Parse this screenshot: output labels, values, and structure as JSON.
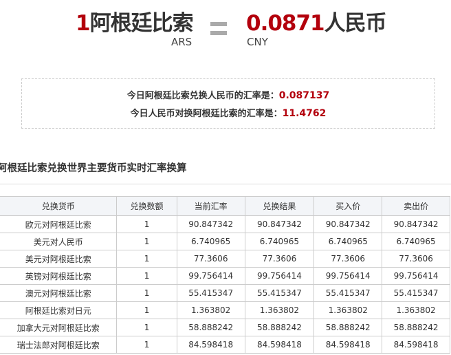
{
  "header": {
    "amount": "1",
    "from_name": "阿根廷比索",
    "from_code": "ARS",
    "result": "0.0871",
    "to_name": "人民币",
    "to_code": "CNY"
  },
  "rates": {
    "line1_label": "今日阿根廷比索兑换人民币的汇率是：",
    "line1_value": "0.087137",
    "line2_label": "今日人民币对换阿根廷比索的汇率是：",
    "line2_value": "11.4762"
  },
  "section_title": "阿根廷比索兑换世界主要货币实时汇率换算",
  "table": {
    "columns": [
      "兑换货币",
      "兑换数额",
      "当前汇率",
      "兑换结果",
      "买入价",
      "卖出价"
    ],
    "rows": [
      [
        "欧元对阿根廷比索",
        "1",
        "90.847342",
        "90.847342",
        "90.847342",
        "90.847342"
      ],
      [
        "美元对人民币",
        "1",
        "6.740965",
        "6.740965",
        "6.740965",
        "6.740965"
      ],
      [
        "美元对阿根廷比索",
        "1",
        "77.3606",
        "77.3606",
        "77.3606",
        "77.3606"
      ],
      [
        "英镑对阿根廷比索",
        "1",
        "99.756414",
        "99.756414",
        "99.756414",
        "99.756414"
      ],
      [
        "澳元对阿根廷比索",
        "1",
        "55.415347",
        "55.415347",
        "55.415347",
        "55.415347"
      ],
      [
        "阿根廷比索对日元",
        "1",
        "1.363802",
        "1.363802",
        "1.363802",
        "1.363802"
      ],
      [
        "加拿大元对阿根廷比索",
        "1",
        "58.888242",
        "58.888242",
        "58.888242",
        "58.888242"
      ],
      [
        "瑞士法郎对阿根廷比索",
        "1",
        "84.598418",
        "84.598418",
        "84.598418",
        "84.598418"
      ]
    ]
  },
  "colors": {
    "accent": "#b3000c"
  }
}
